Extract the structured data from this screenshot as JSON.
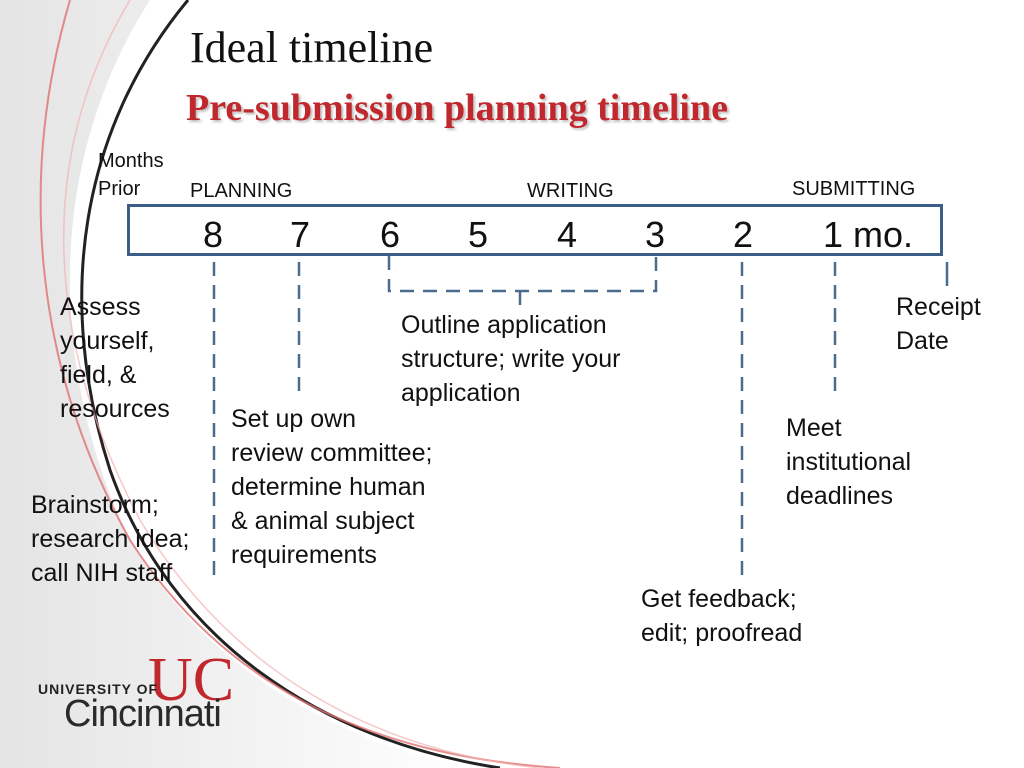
{
  "slide": {
    "title": "Ideal timeline",
    "subtitle": "Pre-submission planning timeline"
  },
  "axis": {
    "caption": "Months\nPrior",
    "phases": [
      "PLANNING",
      "WRITING",
      "SUBMITTING"
    ],
    "months": [
      "8",
      "7",
      "6",
      "5",
      "4",
      "3",
      "2",
      "1 mo."
    ]
  },
  "notes": {
    "assess": "Assess\nyourself,\nfield, &\nresources",
    "brainstorm": "Brainstorm;\nresearch idea;\ncall NIH staff",
    "review": "Set up own\nreview committee;\ndetermine human\n& animal subject\nrequirements",
    "outline": "Outline application\nstructure; write your\napplication",
    "feedback": "Get feedback;\nedit; proofread",
    "institutional": "Meet\ninstitutional\ndeadlines",
    "receipt": "Receipt\nDate"
  },
  "logo": {
    "line1": "UNIVERSITY OF",
    "line2": "Cincinnati",
    "monogram": "UC"
  },
  "colors": {
    "accent_red": "#c0282e",
    "timeline_blue": "#3a5e86",
    "dash_blue": "#4a6a8e"
  }
}
